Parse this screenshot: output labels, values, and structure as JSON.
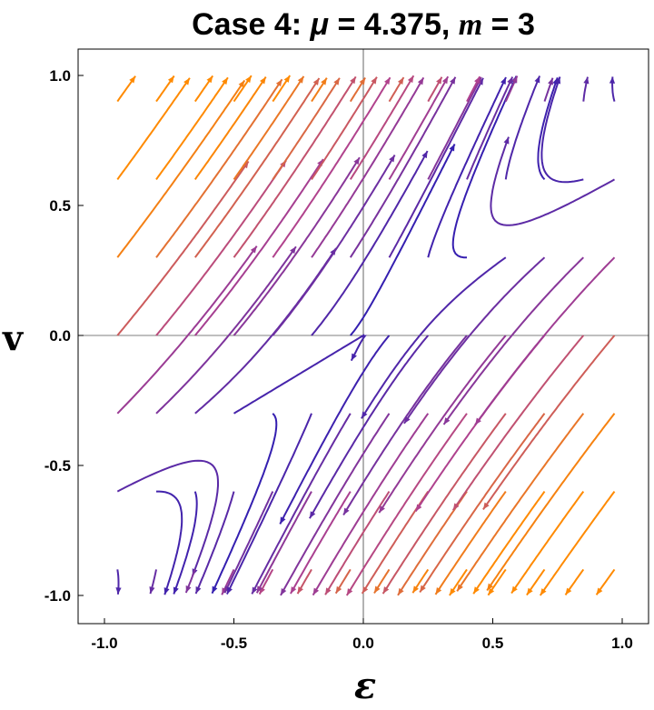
{
  "chart_data": {
    "type": "stream plot",
    "title": "Case 4: μ = 4.375, m = 3",
    "title_parts": {
      "prefix": "Case 4: ",
      "mu_symbol": "μ",
      "mu_value": " = 4.375, ",
      "m_symbol": "m",
      "m_value": " = 3"
    },
    "xlabel": "ε",
    "ylabel": "v",
    "xlim": [
      -1.05,
      1.05
    ],
    "ylim": [
      -1.1,
      1.1
    ],
    "x_ticks": [
      -1.0,
      -0.5,
      0.0,
      0.5,
      1.0
    ],
    "y_ticks": [
      -1.0,
      -0.5,
      0.0,
      0.5,
      1.0
    ],
    "x_tick_labels": [
      "-1.0",
      "-0.5",
      "0.0",
      "0.5",
      "1.0"
    ],
    "y_tick_labels": [
      "-1.0",
      "-0.5",
      "0.0",
      "0.5",
      "1.0"
    ],
    "grid": false,
    "axes_through_origin": true,
    "equilibrium": [
      0.0,
      0.0
    ],
    "color_scale": {
      "low_speed": "#2a1cb3",
      "mid_speed": "#b0428e",
      "high_speed": "#ff8a00"
    }
  }
}
